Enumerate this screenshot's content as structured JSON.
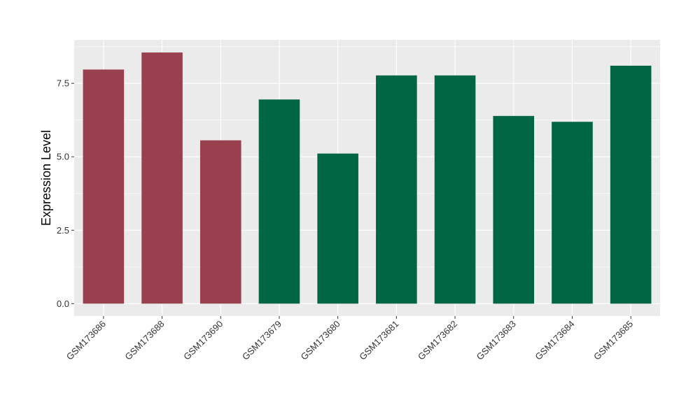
{
  "chart_data": {
    "type": "bar",
    "title": "",
    "xlabel": "",
    "ylabel": "Expression Level",
    "categories": [
      "GSM173686",
      "GSM173688",
      "GSM173690",
      "GSM173679",
      "GSM173680",
      "GSM173681",
      "GSM173682",
      "GSM173683",
      "GSM173684",
      "GSM173685"
    ],
    "values": [
      7.97,
      8.55,
      5.56,
      6.95,
      5.11,
      7.77,
      7.77,
      6.39,
      6.19,
      8.1
    ],
    "bar_colors": [
      "#99404e",
      "#99404e",
      "#99404e",
      "#006644",
      "#006644",
      "#006644",
      "#006644",
      "#006644",
      "#006644",
      "#006644"
    ],
    "ylim": [
      -0.42,
      8.98
    ],
    "yticks": [
      0.0,
      2.5,
      5.0,
      7.5
    ],
    "ytick_labels": [
      "0.0",
      "2.5",
      "5.0",
      "7.5"
    ],
    "grid": true,
    "panel_background": "#ebebeb",
    "grid_color": "#ffffff"
  }
}
